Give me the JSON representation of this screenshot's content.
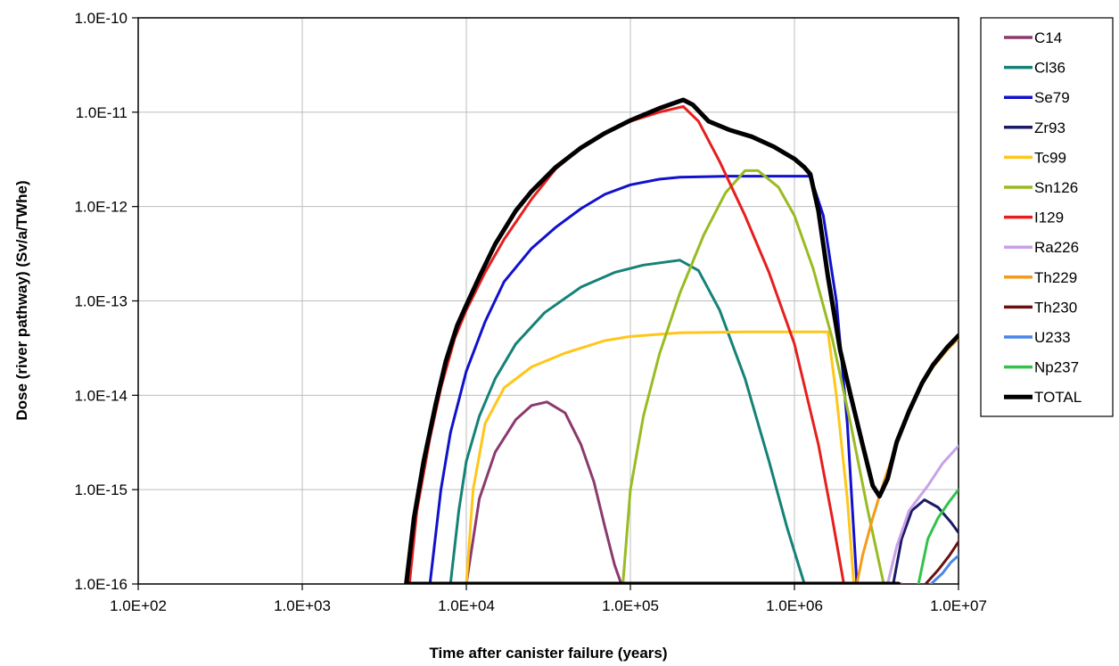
{
  "chart_data": {
    "type": "line",
    "xlabel": "Time after canister failure (years)",
    "ylabel": "Dose (river pathway) (Sv/a/TWhe)",
    "x_scale": "log",
    "y_scale": "log",
    "xlim": [
      100,
      10000000
    ],
    "ylim": [
      1e-16,
      1e-10
    ],
    "x_ticks": [
      100,
      1000,
      10000,
      100000,
      1000000,
      10000000
    ],
    "x_tick_labels": [
      "1.0E+02",
      "1.0E+03",
      "1.0E+04",
      "1.0E+05",
      "1.0E+06",
      "1.0E+07"
    ],
    "y_ticks": [
      1e-10,
      1e-11,
      1e-12,
      1e-13,
      1e-14,
      1e-15,
      1e-16
    ],
    "y_tick_labels": [
      "1.0E-10",
      "1.0E-11",
      "1.0E-12",
      "1.0E-13",
      "1.0E-14",
      "1.0E-15",
      "1.0E-16"
    ],
    "grid": true,
    "legend_position": "right",
    "series": [
      {
        "name": "C14",
        "color": "#8B3A6E",
        "width": 3,
        "points": [
          [
            10000,
            1e-16
          ],
          [
            12000,
            8e-16
          ],
          [
            15000,
            2.5e-15
          ],
          [
            20000,
            5.5e-15
          ],
          [
            25000,
            7.8e-15
          ],
          [
            31000,
            8.5e-15
          ],
          [
            40000,
            6.5e-15
          ],
          [
            50000,
            3e-15
          ],
          [
            60000,
            1.2e-15
          ],
          [
            70000,
            4e-16
          ],
          [
            80000,
            1.6e-16
          ],
          [
            88000,
            1e-16
          ]
        ]
      },
      {
        "name": "Cl36",
        "color": "#158277",
        "width": 3,
        "points": [
          [
            8000,
            1e-16
          ],
          [
            9000,
            6e-16
          ],
          [
            10000,
            2e-15
          ],
          [
            12000,
            6e-15
          ],
          [
            15000,
            1.5e-14
          ],
          [
            20000,
            3.5e-14
          ],
          [
            30000,
            7.5e-14
          ],
          [
            50000,
            1.4e-13
          ],
          [
            80000,
            2e-13
          ],
          [
            120000,
            2.4e-13
          ],
          [
            200000,
            2.7e-13
          ],
          [
            260000,
            2.1e-13
          ],
          [
            350000,
            8e-14
          ],
          [
            500000,
            1.5e-14
          ],
          [
            700000,
            2e-15
          ],
          [
            900000,
            4e-16
          ],
          [
            1150000,
            1e-16
          ]
        ]
      },
      {
        "name": "Se79",
        "color": "#1111CC",
        "width": 3,
        "points": [
          [
            6000,
            1e-16
          ],
          [
            7000,
            1e-15
          ],
          [
            8000,
            4e-15
          ],
          [
            10000,
            1.8e-14
          ],
          [
            13000,
            6e-14
          ],
          [
            17000,
            1.6e-13
          ],
          [
            25000,
            3.6e-13
          ],
          [
            35000,
            6e-13
          ],
          [
            50000,
            9.5e-13
          ],
          [
            70000,
            1.35e-12
          ],
          [
            100000,
            1.7e-12
          ],
          [
            150000,
            1.95e-12
          ],
          [
            200000,
            2.05e-12
          ],
          [
            400000,
            2.1e-12
          ],
          [
            800000,
            2.1e-12
          ],
          [
            1250000,
            2.1e-12
          ],
          [
            1500000,
            8e-13
          ],
          [
            1800000,
            1e-13
          ],
          [
            2100000,
            5e-15
          ],
          [
            2400000,
            1e-16
          ]
        ]
      },
      {
        "name": "Zr93",
        "color": "#1A1A66",
        "width": 3,
        "points": [
          [
            4000000,
            1e-16
          ],
          [
            4500000,
            3e-16
          ],
          [
            5200000,
            6e-16
          ],
          [
            6200000,
            7.8e-16
          ],
          [
            7500000,
            6.5e-16
          ],
          [
            9000000,
            4.5e-16
          ],
          [
            10000000,
            3.5e-16
          ]
        ]
      },
      {
        "name": "Tc99",
        "color": "#FFC61A",
        "width": 3,
        "points": [
          [
            10000,
            1e-16
          ],
          [
            11000,
            1e-15
          ],
          [
            13000,
            5e-15
          ],
          [
            17000,
            1.2e-14
          ],
          [
            25000,
            2e-14
          ],
          [
            40000,
            2.8e-14
          ],
          [
            70000,
            3.8e-14
          ],
          [
            100000,
            4.2e-14
          ],
          [
            200000,
            4.6e-14
          ],
          [
            500000,
            4.7e-14
          ],
          [
            1000000,
            4.7e-14
          ],
          [
            1600000,
            4.7e-14
          ],
          [
            1800000,
            1e-14
          ],
          [
            2100000,
            8e-16
          ],
          [
            2300000,
            1e-16
          ]
        ]
      },
      {
        "name": "Sn126",
        "color": "#99BB22",
        "width": 3,
        "points": [
          [
            90000,
            1e-16
          ],
          [
            100000,
            1e-15
          ],
          [
            120000,
            6e-15
          ],
          [
            150000,
            2.7e-14
          ],
          [
            200000,
            1.2e-13
          ],
          [
            280000,
            5e-13
          ],
          [
            380000,
            1.4e-12
          ],
          [
            500000,
            2.4e-12
          ],
          [
            600000,
            2.4e-12
          ],
          [
            800000,
            1.6e-12
          ],
          [
            1000000,
            8e-13
          ],
          [
            1300000,
            2.2e-13
          ],
          [
            1700000,
            4e-14
          ],
          [
            2200000,
            5e-15
          ],
          [
            2800000,
            6e-16
          ],
          [
            3500000,
            1e-16
          ]
        ]
      },
      {
        "name": "I129",
        "color": "#E61E1E",
        "width": 3,
        "points": [
          [
            4500000,
            1e-16
          ],
          [
            4500,
            1e-16
          ],
          [
            5000,
            6e-16
          ],
          [
            6000,
            3.5e-15
          ],
          [
            7000,
            1.2e-14
          ],
          [
            8500,
            4e-14
          ],
          [
            10000,
            8e-14
          ],
          [
            13000,
            2e-13
          ],
          [
            17000,
            4.5e-13
          ],
          [
            25000,
            1.2e-12
          ],
          [
            35000,
            2.5e-12
          ],
          [
            50000,
            4.2e-12
          ],
          [
            70000,
            6e-12
          ],
          [
            100000,
            8e-12
          ],
          [
            150000,
            1e-11
          ],
          [
            210000,
            1.15e-11
          ],
          [
            260000,
            8e-12
          ],
          [
            350000,
            3e-12
          ],
          [
            500000,
            8e-13
          ],
          [
            700000,
            2e-13
          ],
          [
            1000000,
            3.5e-14
          ],
          [
            1400000,
            3e-15
          ],
          [
            1700000,
            5e-16
          ],
          [
            2000000,
            1e-16
          ]
        ]
      },
      {
        "name": "Ra226",
        "color": "#C8A2E8",
        "width": 3,
        "points": [
          [
            3700000,
            1e-16
          ],
          [
            4200000,
            2.5e-16
          ],
          [
            5000000,
            6e-16
          ],
          [
            6500000,
            1.1e-15
          ],
          [
            8000000,
            1.9e-15
          ],
          [
            10000000,
            2.9e-15
          ]
        ]
      },
      {
        "name": "Th229",
        "color": "#F59B1A",
        "width": 3,
        "points": [
          [
            2400000,
            1e-16
          ],
          [
            2600000,
            2e-16
          ],
          [
            3000000,
            5e-16
          ],
          [
            3500000,
            1.2e-15
          ],
          [
            4200000,
            3e-15
          ],
          [
            5000000,
            6.5e-15
          ],
          [
            6000000,
            1.3e-14
          ],
          [
            7000000,
            2e-14
          ],
          [
            8500000,
            3e-14
          ],
          [
            10000000,
            4e-14
          ]
        ]
      },
      {
        "name": "Th230",
        "color": "#6B1010",
        "width": 3,
        "points": [
          [
            6300000,
            1e-16
          ],
          [
            7500000,
            1.4e-16
          ],
          [
            8800000,
            2e-16
          ],
          [
            10000000,
            2.8e-16
          ]
        ]
      },
      {
        "name": "U233",
        "color": "#4A86E8",
        "width": 3,
        "points": [
          [
            6800000,
            1e-16
          ],
          [
            8000000,
            1.3e-16
          ],
          [
            9000000,
            1.7e-16
          ],
          [
            10000000,
            2e-16
          ]
        ]
      },
      {
        "name": "Np237",
        "color": "#33C24A",
        "width": 3,
        "points": [
          [
            5700000,
            1e-16
          ],
          [
            6500000,
            3e-16
          ],
          [
            7500000,
            5e-16
          ],
          [
            8800000,
            7.5e-16
          ],
          [
            10000000,
            1e-15
          ]
        ]
      },
      {
        "name": "TOTAL",
        "color": "#000000",
        "width": 5,
        "points": [
          [
            4300000,
            1e-16
          ],
          [
            4300,
            1e-16
          ],
          [
            4800,
            5e-16
          ],
          [
            5500,
            2e-15
          ],
          [
            6500,
            8e-15
          ],
          [
            7500,
            2.3e-14
          ],
          [
            8800,
            5.5e-14
          ],
          [
            10000,
            9e-14
          ],
          [
            12000,
            1.8e-13
          ],
          [
            15000,
            4e-13
          ],
          [
            20000,
            9e-13
          ],
          [
            25000,
            1.45e-12
          ],
          [
            35000,
            2.6e-12
          ],
          [
            50000,
            4.2e-12
          ],
          [
            70000,
            6e-12
          ],
          [
            100000,
            8.2e-12
          ],
          [
            150000,
            1.1e-11
          ],
          [
            210000,
            1.35e-11
          ],
          [
            240000,
            1.2e-11
          ],
          [
            300000,
            8e-12
          ],
          [
            400000,
            6.5e-12
          ],
          [
            550000,
            5.5e-12
          ],
          [
            750000,
            4.3e-12
          ],
          [
            1000000,
            3.2e-12
          ],
          [
            1150000,
            2.6e-12
          ],
          [
            1250000,
            2.2e-12
          ],
          [
            1400000,
            9e-13
          ],
          [
            1600000,
            1.8e-13
          ],
          [
            1900000,
            3e-14
          ],
          [
            2200000,
            1e-14
          ],
          [
            2600000,
            3e-15
          ],
          [
            3000000,
            1.1e-15
          ],
          [
            3300000,
            8.5e-16
          ],
          [
            3700000,
            1.3e-15
          ],
          [
            4200000,
            3.2e-15
          ],
          [
            5000000,
            6.8e-15
          ],
          [
            6000000,
            1.35e-14
          ],
          [
            7000000,
            2.1e-14
          ],
          [
            8500000,
            3.2e-14
          ],
          [
            10000000,
            4.3e-14
          ]
        ]
      }
    ]
  }
}
